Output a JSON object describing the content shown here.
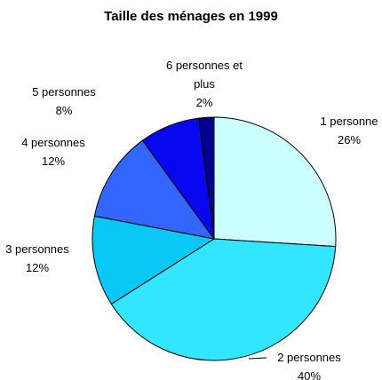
{
  "chart_data": {
    "type": "pie",
    "title": "Taille des ménages en 1999",
    "categories": [
      "1 personne",
      "2 personnes",
      "3 personnes",
      "4 personnes",
      "5 personnes",
      "6 personnes et plus"
    ],
    "values": [
      26,
      40,
      12,
      12,
      8,
      2
    ],
    "value_labels": [
      "26%",
      "40%",
      "12%",
      "12%",
      "8%",
      "2%"
    ],
    "colors": [
      "#ccffff",
      "#33e6ff",
      "#0ac8f5",
      "#3366ff",
      "#0808f0",
      "#000090"
    ]
  }
}
